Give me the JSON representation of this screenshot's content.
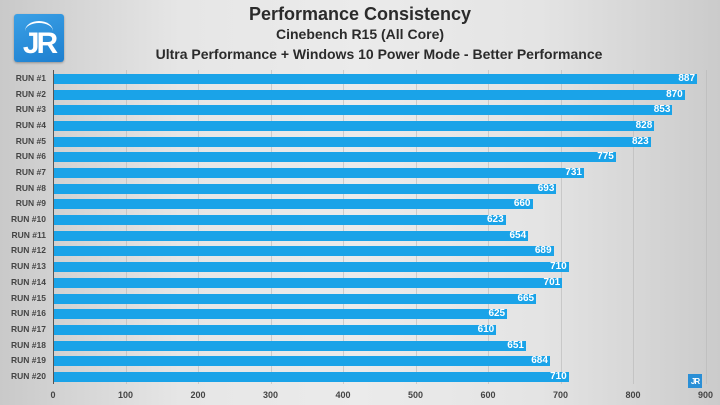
{
  "logo": {
    "text": "JR",
    "color": "#2a8fd6"
  },
  "header": {
    "title": "Performance Consistency",
    "subtitle1": "Cinebench R15 (All Core)",
    "subtitle2": "Ultra Performance + Windows 10 Power Mode - Better Performance"
  },
  "watermark": {
    "text": "JR"
  },
  "chart_data": {
    "type": "bar",
    "orientation": "horizontal",
    "title": "Performance Consistency",
    "subtitle": [
      "Cinebench R15 (All Core)",
      "Ultra Performance + Windows 10 Power Mode - Better Performance"
    ],
    "categories": [
      "RUN #1",
      "RUN #2",
      "RUN #3",
      "RUN #4",
      "RUN #5",
      "RUN #6",
      "RUN #7",
      "RUN #8",
      "RUN #9",
      "RUN #10",
      "RUN #11",
      "RUN #12",
      "RUN #13",
      "RUN #14",
      "RUN #15",
      "RUN #16",
      "RUN #17",
      "RUN #18",
      "RUN #19",
      "RUN #20"
    ],
    "values": [
      887,
      870,
      853,
      828,
      823,
      775,
      731,
      693,
      660,
      623,
      654,
      689,
      710,
      701,
      665,
      625,
      610,
      651,
      684,
      710
    ],
    "xlabel": "",
    "ylabel": "",
    "xlim": [
      0,
      900
    ],
    "xticks": [
      0,
      100,
      200,
      300,
      400,
      500,
      600,
      700,
      800,
      900
    ],
    "grid": true,
    "legend": null,
    "bar_color": "#1aa3e8",
    "data_labels": true
  }
}
